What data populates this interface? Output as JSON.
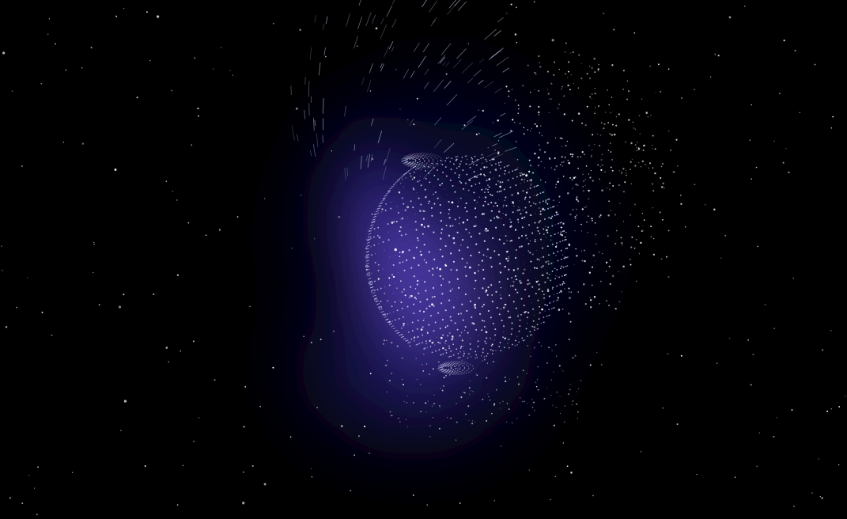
{
  "scene": {
    "background_color": "#000000",
    "nebula_colors": [
      "#6b4fd6",
      "#3b2fa8",
      "#1a1670"
    ],
    "sphere_color": "#cfd6ff",
    "star_color": "#ffffff",
    "subject": "particle-sphere-icon",
    "effect": "starfield-icon"
  }
}
